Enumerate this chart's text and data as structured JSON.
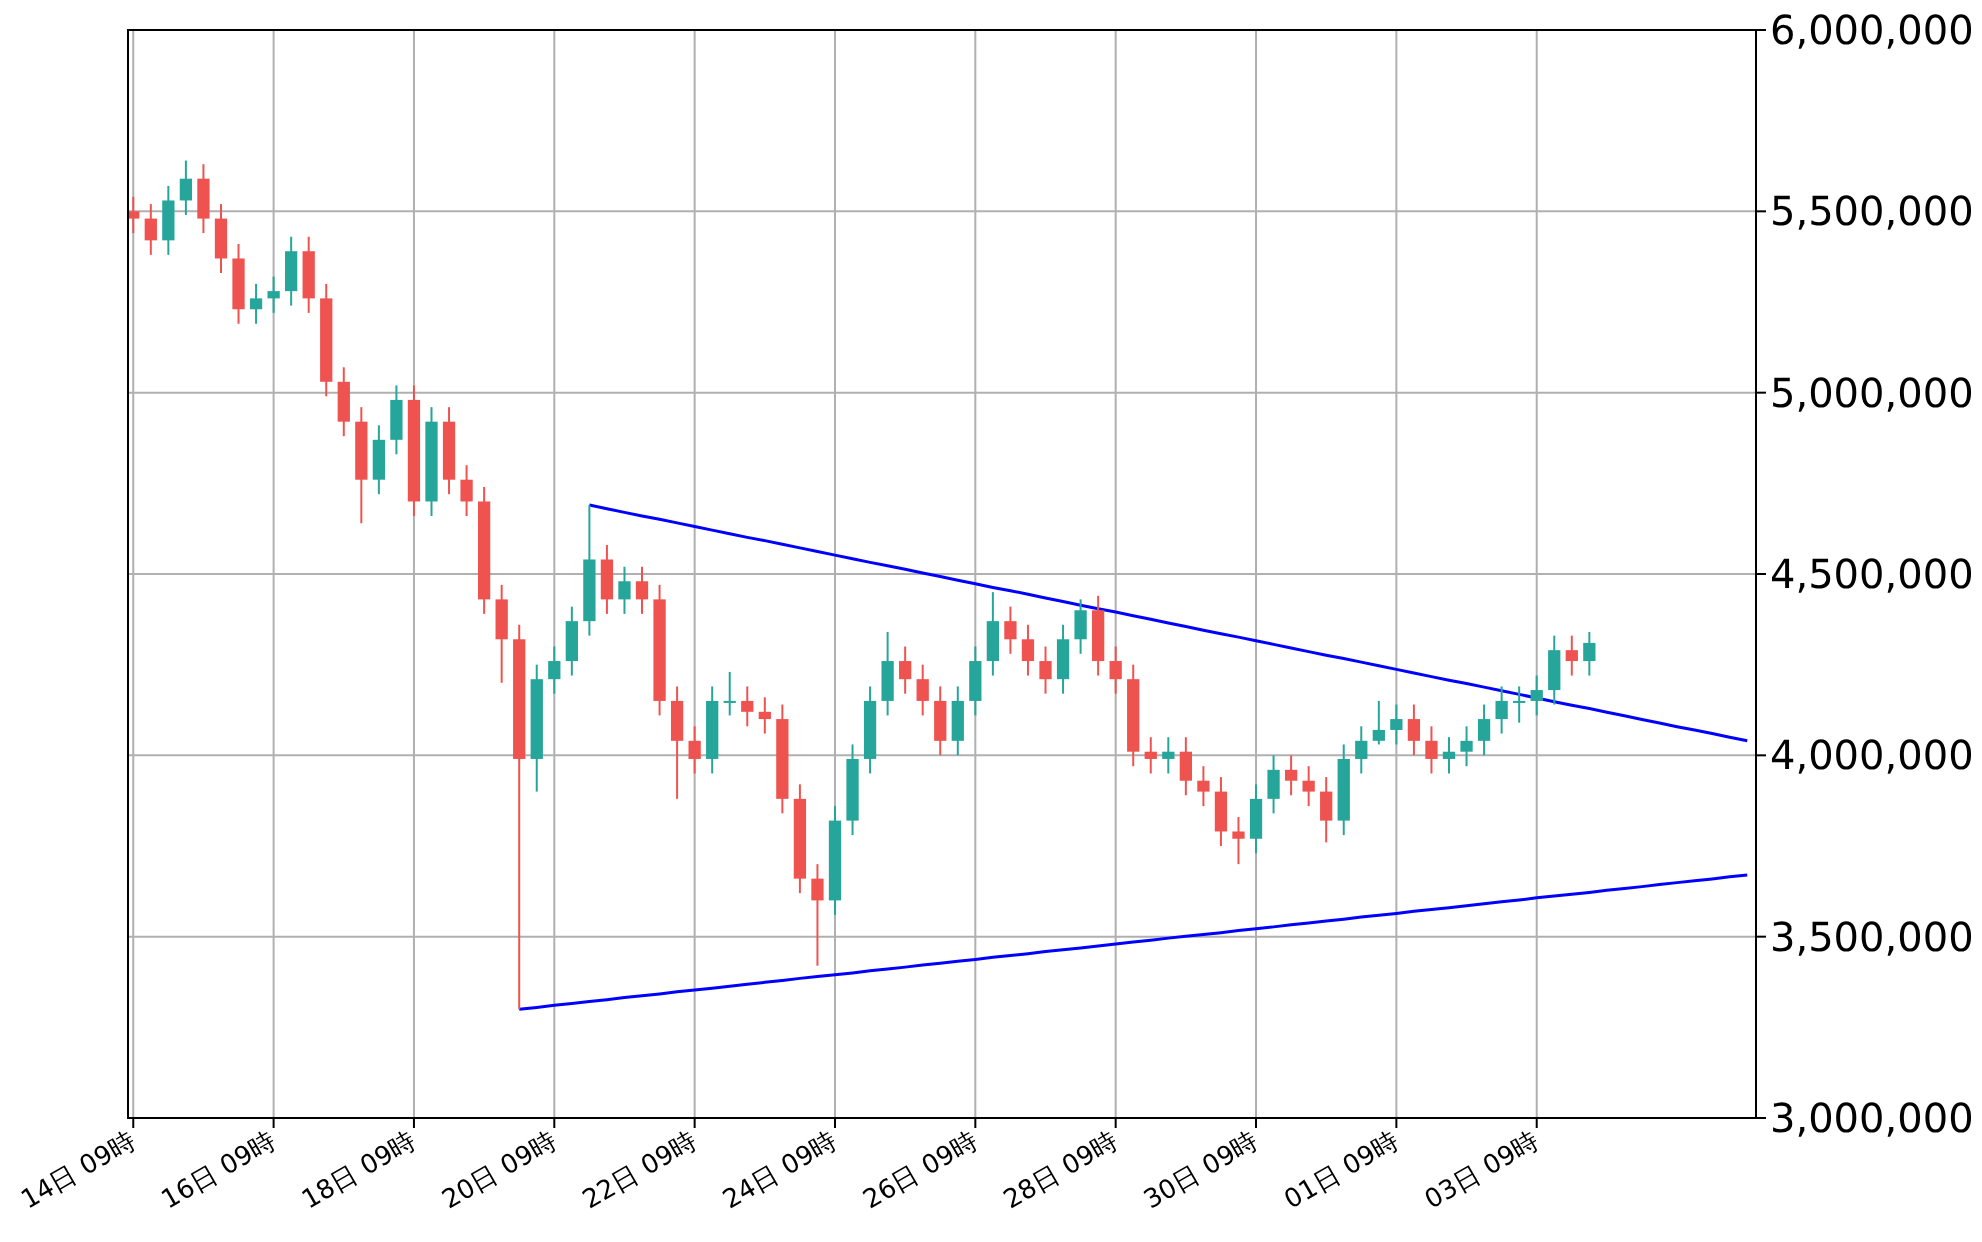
{
  "chart_data": {
    "type": "candlestick",
    "categories": [
      "14日 09時",
      null,
      null,
      null,
      null,
      null,
      null,
      null,
      "16日 09時",
      null,
      null,
      null,
      null,
      null,
      null,
      null,
      "18日 09時",
      null,
      null,
      null,
      null,
      null,
      null,
      null,
      "20日 09時",
      null,
      null,
      null,
      null,
      null,
      null,
      null,
      "22日 09時",
      null,
      null,
      null,
      null,
      null,
      null,
      null,
      "24日 09時",
      null,
      null,
      null,
      null,
      null,
      null,
      null,
      "26日 09時",
      null,
      null,
      null,
      null,
      null,
      null,
      null,
      "28日 09時",
      null,
      null,
      null,
      null,
      null,
      null,
      null,
      "30日 09時",
      null,
      null,
      null,
      null,
      null,
      null,
      null,
      "01日 09時",
      null,
      null,
      null,
      null,
      null,
      null,
      null,
      "03日 09時",
      null,
      null,
      null,
      null,
      null,
      null,
      null,
      null,
      null,
      null,
      null,
      null
    ],
    "ohlc": [
      [
        5500000,
        5540000,
        5440000,
        5480000
      ],
      [
        5480000,
        5520000,
        5380000,
        5420000
      ],
      [
        5420000,
        5570000,
        5380000,
        5530000
      ],
      [
        5530000,
        5640000,
        5490000,
        5590000
      ],
      [
        5590000,
        5630000,
        5440000,
        5480000
      ],
      [
        5480000,
        5520000,
        5330000,
        5370000
      ],
      [
        5370000,
        5410000,
        5190000,
        5230000
      ],
      [
        5230000,
        5300000,
        5190000,
        5260000
      ],
      [
        5260000,
        5320000,
        5220000,
        5280000
      ],
      [
        5280000,
        5430000,
        5240000,
        5390000
      ],
      [
        5390000,
        5430000,
        5220000,
        5260000
      ],
      [
        5260000,
        5300000,
        4990000,
        5030000
      ],
      [
        5030000,
        5070000,
        4880000,
        4920000
      ],
      [
        4920000,
        4960000,
        4640000,
        4760000
      ],
      [
        4760000,
        4910000,
        4720000,
        4870000
      ],
      [
        4870000,
        5020000,
        4830000,
        4980000
      ],
      [
        4980000,
        5020000,
        4660000,
        4700000
      ],
      [
        4700000,
        4960000,
        4660000,
        4920000
      ],
      [
        4920000,
        4960000,
        4720000,
        4760000
      ],
      [
        4760000,
        4800000,
        4660000,
        4700000
      ],
      [
        4700000,
        4740000,
        4390000,
        4430000
      ],
      [
        4430000,
        4470000,
        4200000,
        4320000
      ],
      [
        4320000,
        4360000,
        3300000,
        3990000
      ],
      [
        3990000,
        4250000,
        3900000,
        4210000
      ],
      [
        4210000,
        4300000,
        4170000,
        4260000
      ],
      [
        4260000,
        4410000,
        4220000,
        4370000
      ],
      [
        4370000,
        4690000,
        4330000,
        4540000
      ],
      [
        4540000,
        4580000,
        4390000,
        4430000
      ],
      [
        4430000,
        4520000,
        4390000,
        4480000
      ],
      [
        4480000,
        4520000,
        4390000,
        4430000
      ],
      [
        4430000,
        4470000,
        4110000,
        4150000
      ],
      [
        4150000,
        4190000,
        3880000,
        4040000
      ],
      [
        4040000,
        4080000,
        3950000,
        3990000
      ],
      [
        3990000,
        4190000,
        3950000,
        4150000
      ],
      [
        4150000,
        4230000,
        4110000,
        4150000
      ],
      [
        4150000,
        4190000,
        4080000,
        4120000
      ],
      [
        4120000,
        4160000,
        4060000,
        4100000
      ],
      [
        4100000,
        4140000,
        3840000,
        3880000
      ],
      [
        3880000,
        3920000,
        3620000,
        3660000
      ],
      [
        3660000,
        3700000,
        3420000,
        3600000
      ],
      [
        3600000,
        3860000,
        3560000,
        3820000
      ],
      [
        3820000,
        4030000,
        3780000,
        3990000
      ],
      [
        3990000,
        4190000,
        3950000,
        4150000
      ],
      [
        4150000,
        4340000,
        4110000,
        4260000
      ],
      [
        4260000,
        4300000,
        4170000,
        4210000
      ],
      [
        4210000,
        4250000,
        4110000,
        4150000
      ],
      [
        4150000,
        4190000,
        4000000,
        4040000
      ],
      [
        4040000,
        4190000,
        4000000,
        4150000
      ],
      [
        4150000,
        4300000,
        4110000,
        4260000
      ],
      [
        4260000,
        4450000,
        4220000,
        4370000
      ],
      [
        4370000,
        4410000,
        4280000,
        4320000
      ],
      [
        4320000,
        4360000,
        4220000,
        4260000
      ],
      [
        4260000,
        4300000,
        4170000,
        4210000
      ],
      [
        4210000,
        4360000,
        4170000,
        4320000
      ],
      [
        4320000,
        4430000,
        4280000,
        4400000
      ],
      [
        4400000,
        4440000,
        4220000,
        4260000
      ],
      [
        4260000,
        4300000,
        4170000,
        4210000
      ],
      [
        4210000,
        4250000,
        3970000,
        4010000
      ],
      [
        4010000,
        4050000,
        3950000,
        3990000
      ],
      [
        3990000,
        4050000,
        3950000,
        4010000
      ],
      [
        4010000,
        4050000,
        3890000,
        3930000
      ],
      [
        3930000,
        3970000,
        3860000,
        3900000
      ],
      [
        3900000,
        3940000,
        3750000,
        3790000
      ],
      [
        3790000,
        3830000,
        3700000,
        3770000
      ],
      [
        3770000,
        3920000,
        3730000,
        3880000
      ],
      [
        3880000,
        4000000,
        3840000,
        3960000
      ],
      [
        3960000,
        4000000,
        3890000,
        3930000
      ],
      [
        3930000,
        3970000,
        3860000,
        3900000
      ],
      [
        3900000,
        3940000,
        3760000,
        3820000
      ],
      [
        3820000,
        4030000,
        3780000,
        3990000
      ],
      [
        3990000,
        4080000,
        3950000,
        4040000
      ],
      [
        4040000,
        4150000,
        4030000,
        4070000
      ],
      [
        4070000,
        4140000,
        4030000,
        4100000
      ],
      [
        4100000,
        4140000,
        4000000,
        4040000
      ],
      [
        4040000,
        4080000,
        3950000,
        3990000
      ],
      [
        3990000,
        4050000,
        3950000,
        4010000
      ],
      [
        4010000,
        4080000,
        3970000,
        4040000
      ],
      [
        4040000,
        4140000,
        4000000,
        4100000
      ],
      [
        4100000,
        4190000,
        4060000,
        4150000
      ],
      [
        4150000,
        4190000,
        4090000,
        4150000
      ],
      [
        4150000,
        4220000,
        4110000,
        4180000
      ],
      [
        4180000,
        4330000,
        4140000,
        4290000
      ],
      [
        4290000,
        4330000,
        4220000,
        4260000
      ],
      [
        4260000,
        4340000,
        4220000,
        4310000
      ],
      null,
      null,
      null,
      null,
      null,
      null,
      null,
      null,
      null
    ],
    "colors": [
      "#ef5350",
      "#ef5350",
      "#26a69a",
      "#26a69a",
      "#ef5350",
      "#ef5350",
      "#ef5350",
      "#26a69a",
      "#26a69a",
      "#26a69a",
      "#ef5350",
      "#ef5350",
      "#ef5350",
      "#ef5350",
      "#26a69a",
      "#26a69a",
      "#ef5350",
      "#26a69a",
      "#ef5350",
      "#ef5350",
      "#ef5350",
      "#ef5350",
      "#ef5350",
      "#26a69a",
      "#26a69a",
      "#26a69a",
      "#26a69a",
      "#ef5350",
      "#26a69a",
      "#ef5350",
      "#ef5350",
      "#ef5350",
      "#ef5350",
      "#26a69a",
      "#26a69a",
      "#ef5350",
      "#ef5350",
      "#ef5350",
      "#ef5350",
      "#ef5350",
      "#26a69a",
      "#26a69a",
      "#26a69a",
      "#26a69a",
      "#ef5350",
      "#ef5350",
      "#ef5350",
      "#26a69a",
      "#26a69a",
      "#26a69a",
      "#ef5350",
      "#ef5350",
      "#ef5350",
      "#26a69a",
      "#26a69a",
      "#ef5350",
      "#ef5350",
      "#ef5350",
      "#ef5350",
      "#26a69a",
      "#ef5350",
      "#ef5350",
      "#ef5350",
      "#ef5350",
      "#26a69a",
      "#26a69a",
      "#ef5350",
      "#ef5350",
      "#ef5350",
      "#26a69a",
      "#26a69a",
      "#26a69a",
      "#26a69a",
      "#ef5350",
      "#ef5350",
      "#26a69a",
      "#26a69a",
      "#26a69a",
      "#26a69a",
      "#26a69a",
      "#26a69a",
      "#26a69a",
      "#ef5350",
      "#26a69a",
      null,
      null,
      null,
      null,
      null,
      null,
      null,
      null,
      null
    ],
    "series": [
      {
        "type": "line",
        "color": "#0000ff",
        "values": [
          null,
          null,
          null,
          null,
          null,
          null,
          null,
          null,
          null,
          null,
          null,
          null,
          null,
          null,
          null,
          null,
          null,
          null,
          null,
          null,
          null,
          null,
          null,
          null,
          null,
          null,
          4690000,
          4680000,
          4670000,
          4660000,
          4651000,
          4641000,
          4631000,
          4621000,
          4611000,
          4601000,
          4592000,
          4582000,
          4572000,
          4562000,
          4552000,
          4542000,
          4532000,
          4523000,
          4513000,
          4503000,
          4493000,
          4483000,
          4473000,
          4463000,
          4454000,
          4444000,
          4434000,
          4424000,
          4414000,
          4404000,
          4395000,
          4385000,
          4375000,
          4365000,
          4355000,
          4345000,
          4335000,
          4326000,
          4316000,
          4306000,
          4296000,
          4286000,
          4276000,
          4267000,
          4257000,
          4247000,
          4237000,
          4227000,
          4217000,
          4207000,
          4198000,
          4188000,
          4178000,
          4168000,
          4158000,
          4148000,
          4138000,
          4129000,
          4119000,
          4109000,
          4099000,
          4089000,
          4079000,
          4070000,
          4060000,
          4050000,
          4040000
        ]
      },
      {
        "type": "line",
        "color": "#0000ff",
        "values": [
          null,
          null,
          null,
          null,
          null,
          null,
          null,
          null,
          null,
          null,
          null,
          null,
          null,
          null,
          null,
          null,
          null,
          null,
          null,
          null,
          null,
          null,
          3300000,
          3305000,
          3311000,
          3316000,
          3321000,
          3326000,
          3332000,
          3337000,
          3342000,
          3348000,
          3353000,
          3358000,
          3363000,
          3369000,
          3374000,
          3379000,
          3385000,
          3390000,
          3395000,
          3400000,
          3406000,
          3411000,
          3416000,
          3422000,
          3427000,
          3432000,
          3437000,
          3443000,
          3448000,
          3453000,
          3459000,
          3464000,
          3469000,
          3474000,
          3480000,
          3485000,
          3490000,
          3496000,
          3501000,
          3506000,
          3511000,
          3517000,
          3522000,
          3527000,
          3533000,
          3538000,
          3543000,
          3548000,
          3554000,
          3559000,
          3564000,
          3570000,
          3575000,
          3580000,
          3585000,
          3591000,
          3596000,
          3601000,
          3607000,
          3612000,
          3617000,
          3622000,
          3628000,
          3633000,
          3638000,
          3644000,
          3649000,
          3654000,
          3659000,
          3665000,
          3670000
        ]
      }
    ],
    "ylim": [
      3000000,
      6000000
    ],
    "yticks": [
      {
        "value": 3000000,
        "label": "3,000,000"
      },
      {
        "value": 3500000,
        "label": "3,500,000"
      },
      {
        "value": 4000000,
        "label": "4,000,000"
      },
      {
        "value": 4500000,
        "label": "4,500,000"
      },
      {
        "value": 5000000,
        "label": "5,000,000"
      },
      {
        "value": 5500000,
        "label": "5,500,000"
      },
      {
        "value": 6000000,
        "label": "6,000,000"
      }
    ],
    "grid": true
  }
}
